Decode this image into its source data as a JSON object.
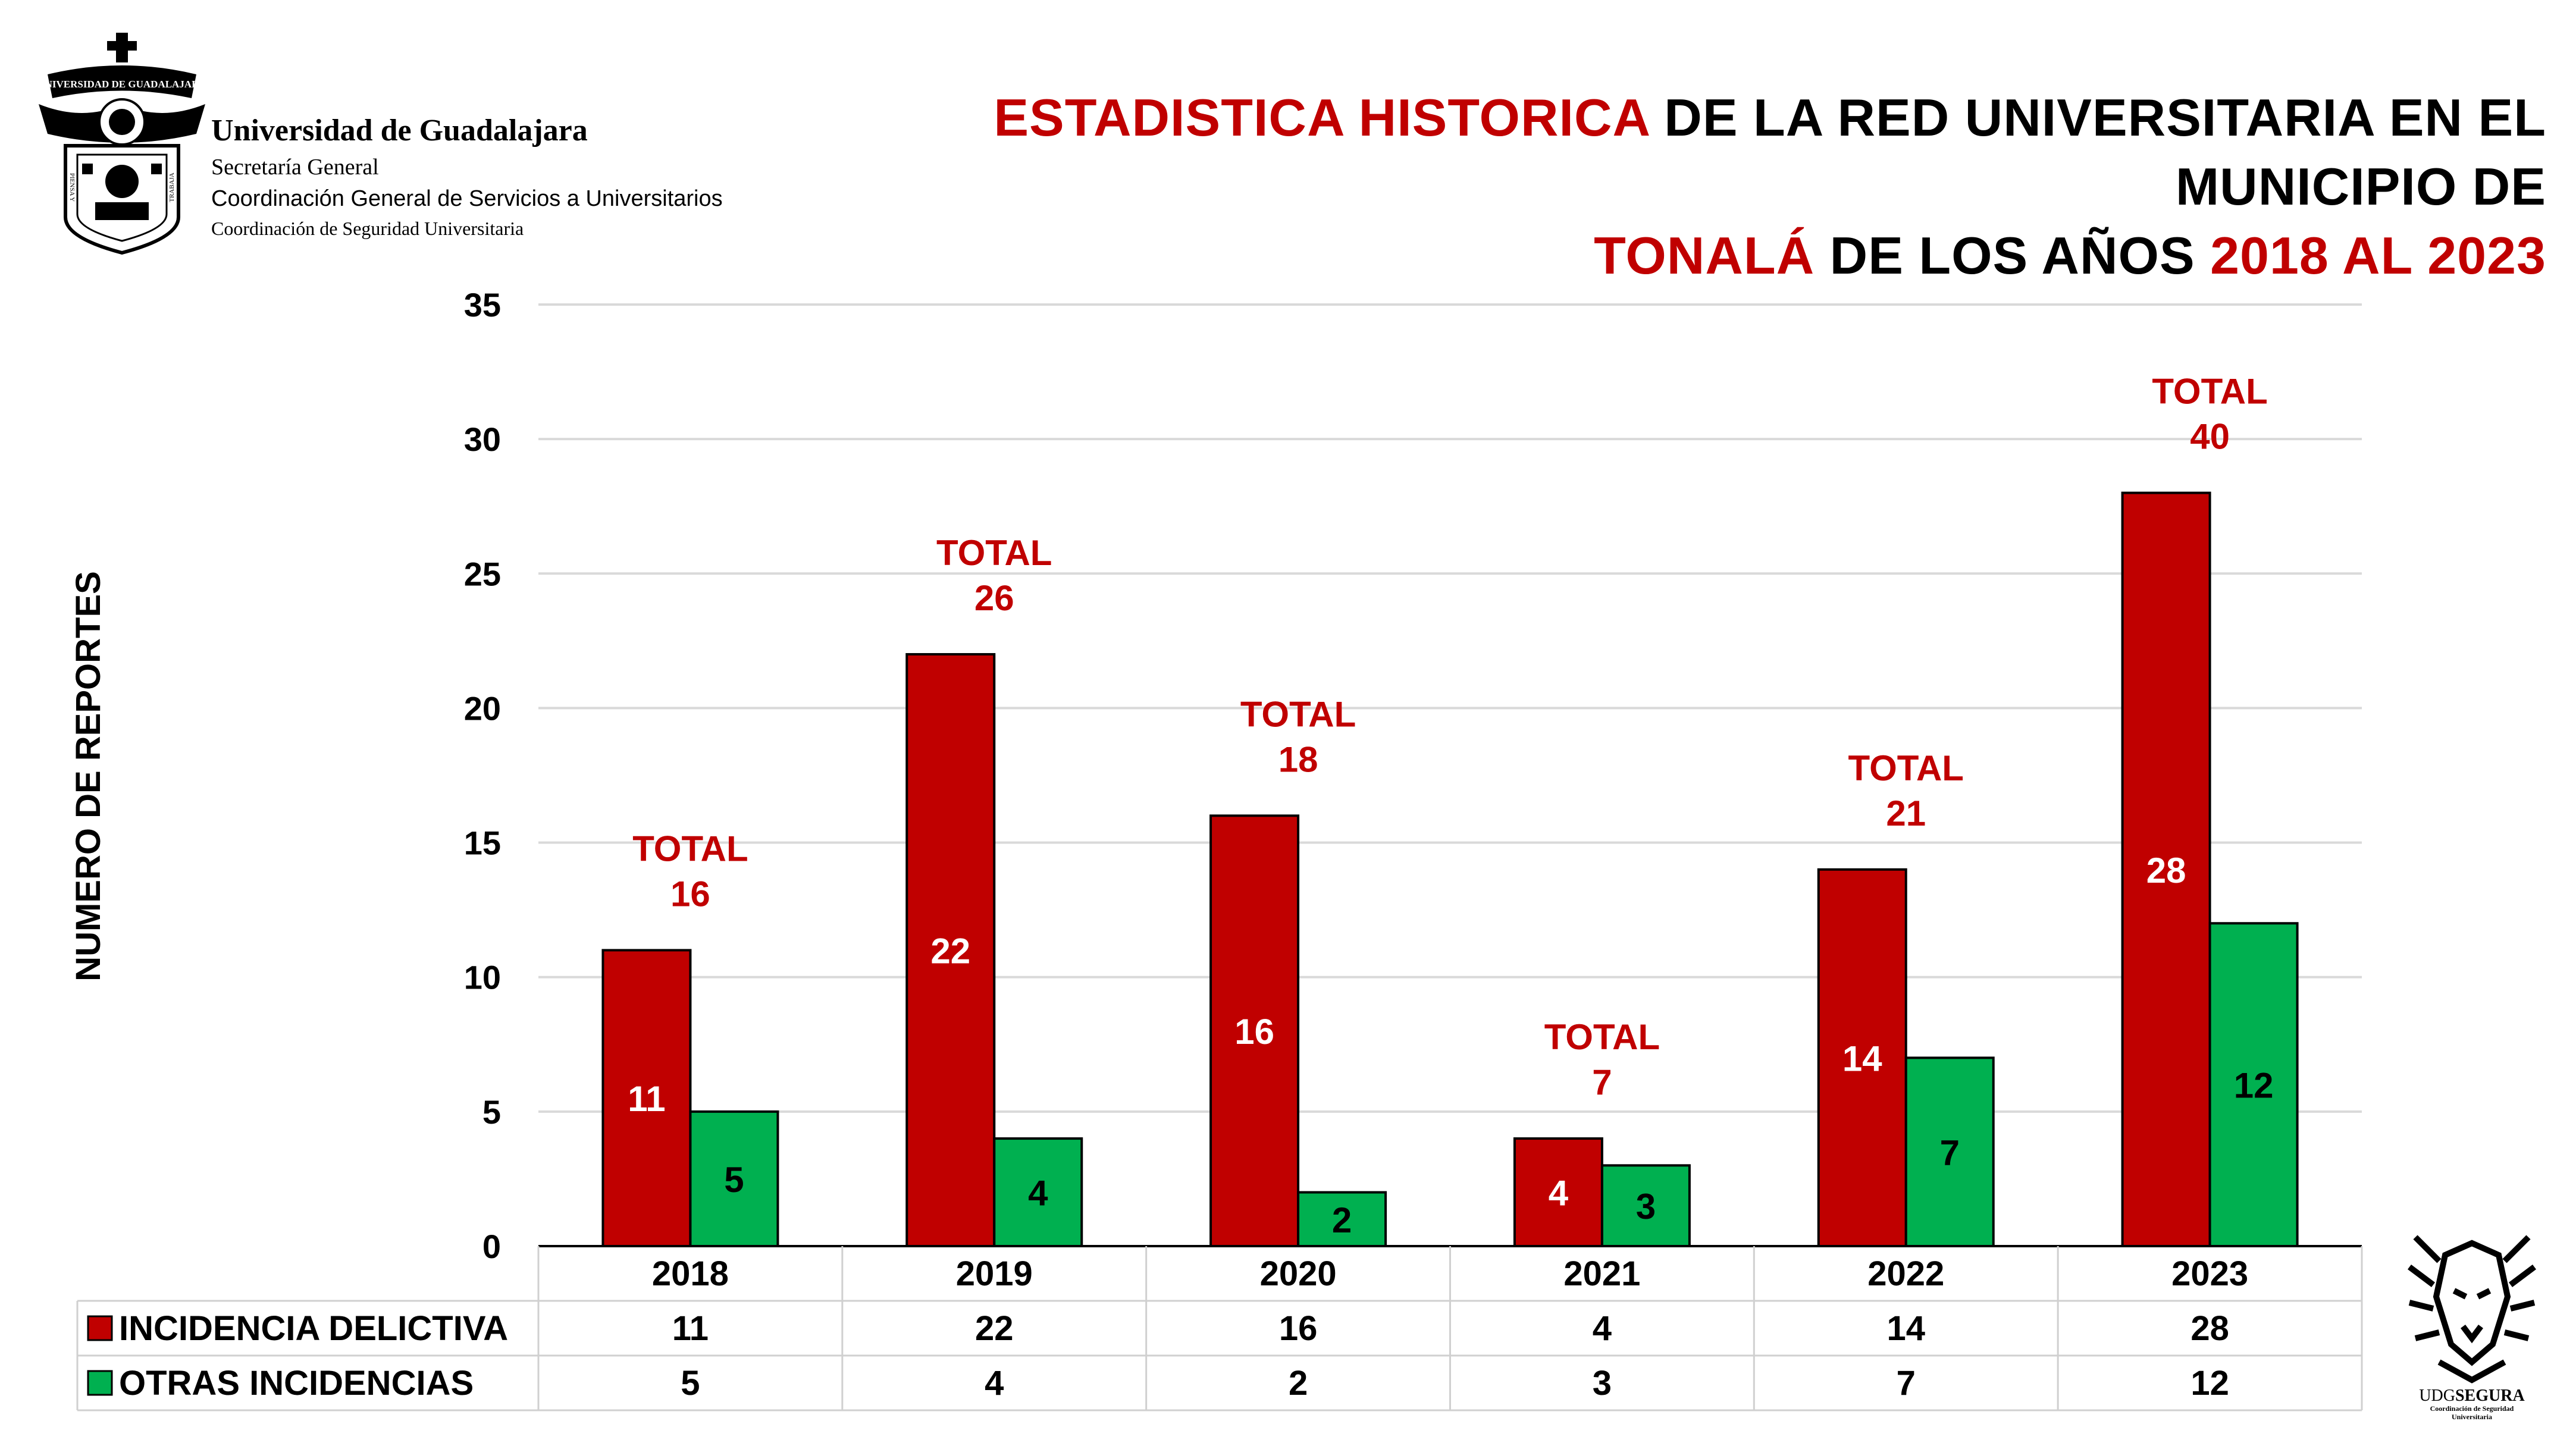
{
  "institution": {
    "name": "Universidad de Guadalajara",
    "line2": "Secretaría General",
    "line3": "Coordinación General de Servicios a Universitarios",
    "line4": "Coordinación de Seguridad Universitaria",
    "seal_text": "UNIVERSIDAD DE GUADALAJARA",
    "seal_motto_left": "PIENSA Y",
    "seal_motto_right": "TRABAJA"
  },
  "title": {
    "part1": "ESTADISTICA HISTORICA",
    "part2": " DE LA RED UNIVERSITARIA EN EL MUNICIPIO DE",
    "part3": "TONALÁ",
    "part4": " DE LOS AÑOS ",
    "part5": "2018 AL 2023"
  },
  "chart_data": {
    "type": "bar",
    "title": "ESTADISTICA HISTORICA DE LA RED UNIVERSITARIA EN EL MUNICIPIO DE TONALÁ DE LOS AÑOS 2018 AL 2023",
    "ylabel": "NUMERO DE REPORTES",
    "xlabel": "",
    "categories": [
      "2018",
      "2019",
      "2020",
      "2021",
      "2022",
      "2023"
    ],
    "series": [
      {
        "name": "INCIDENCIA DELICTIVA",
        "values": [
          11,
          22,
          16,
          4,
          14,
          28
        ],
        "color": "#c00000"
      },
      {
        "name": "OTRAS INCIDENCIAS",
        "values": [
          5,
          4,
          2,
          3,
          7,
          12
        ],
        "color": "#00b050"
      }
    ],
    "totals_label": "TOTAL",
    "totals": [
      16,
      26,
      18,
      7,
      21,
      40
    ],
    "ylim": [
      0,
      35
    ],
    "yticks": [
      0,
      5,
      10,
      15,
      20,
      25,
      30,
      35
    ],
    "grid": true,
    "legend": "data-table-below"
  },
  "colors": {
    "red": "#c00000",
    "green": "#00b050",
    "grid": "#d9d9d9"
  },
  "footer_logo": {
    "name_part1": "UDG",
    "name_part2": "SEGURA",
    "subtitle1": "Coordinación de Seguridad",
    "subtitle2": "Universitaria"
  }
}
